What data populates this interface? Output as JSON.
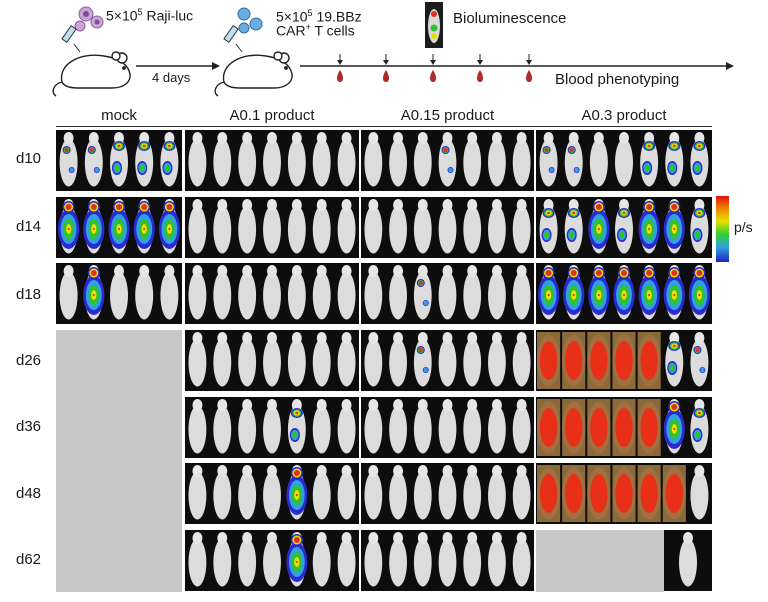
{
  "timeline": {
    "tumor_dose": "5×10",
    "tumor_exp": "5",
    "tumor_line": "Raji-luc",
    "interval": "4 days",
    "cart_dose": "5×10",
    "cart_exp": "5",
    "cart_construct": "19.BBz",
    "cart_cells_prefix": "CAR",
    "cart_cells_sup": "+",
    "cart_cells_suffix": "T cells",
    "imaging_label": "Bioluminescence",
    "blood_label": "Blood phenotyping",
    "blood_draw_count": 5
  },
  "groups": [
    {
      "label": "mock",
      "mice": 5
    },
    {
      "label": "A0.1 product",
      "mice": 7
    },
    {
      "label": "A0.15 product",
      "mice": 7
    },
    {
      "label": "A0.3 product",
      "mice": 7
    }
  ],
  "days": [
    "d10",
    "d14",
    "d18",
    "d26",
    "d36",
    "d48",
    "d62"
  ],
  "legend": {
    "unit": "p/s",
    "colors": [
      "#e01010",
      "#f08000",
      "#e8e000",
      "#30d030",
      "#30a0e0",
      "#2020c0"
    ]
  }
}
